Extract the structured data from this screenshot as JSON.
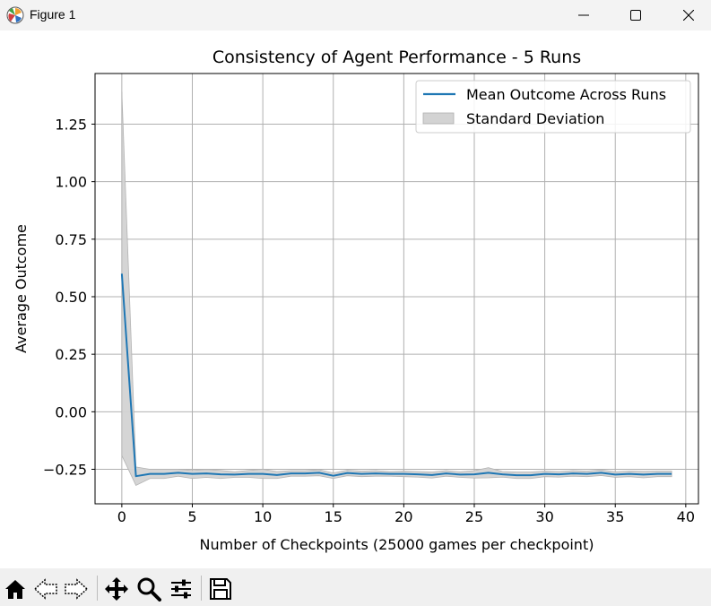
{
  "window": {
    "title": "Figure 1",
    "minimize_icon": "minimize-icon",
    "maximize_icon": "maximize-icon",
    "close_icon": "close-icon"
  },
  "toolbar": {
    "icons": [
      "home-icon",
      "back-icon",
      "forward-icon",
      "pan-icon",
      "zoom-icon",
      "configure-subplots-icon",
      "save-icon"
    ]
  },
  "chart_data": {
    "type": "line",
    "title": "Consistency of Agent Performance - 5 Runs",
    "xlabel": "Number of Checkpoints (25000 games per checkpoint)",
    "ylabel": "Average Outcome",
    "xlim": [
      -1.9,
      40.9
    ],
    "ylim": [
      -0.4,
      1.47
    ],
    "xticks": [
      0,
      5,
      10,
      15,
      20,
      25,
      30,
      35,
      40
    ],
    "xtick_labels": [
      "0",
      "5",
      "10",
      "15",
      "20",
      "25",
      "30",
      "35",
      "40"
    ],
    "yticks": [
      -0.25,
      0.0,
      0.25,
      0.5,
      0.75,
      1.0,
      1.25
    ],
    "ytick_labels": [
      "−0.25",
      "0.00",
      "0.25",
      "0.50",
      "0.75",
      "1.00",
      "1.25"
    ],
    "grid": true,
    "legend_position": "upper right",
    "x": [
      0,
      1,
      2,
      3,
      4,
      5,
      6,
      7,
      8,
      9,
      10,
      11,
      12,
      13,
      14,
      15,
      16,
      17,
      18,
      19,
      20,
      21,
      22,
      23,
      24,
      25,
      26,
      27,
      28,
      29,
      30,
      31,
      32,
      33,
      34,
      35,
      36,
      37,
      38,
      39
    ],
    "series": [
      {
        "name": "Mean Outcome Across Runs",
        "color": "#1f77b4",
        "values": [
          0.6,
          -0.28,
          -0.27,
          -0.27,
          -0.265,
          -0.27,
          -0.268,
          -0.272,
          -0.273,
          -0.27,
          -0.27,
          -0.275,
          -0.268,
          -0.268,
          -0.265,
          -0.278,
          -0.266,
          -0.27,
          -0.268,
          -0.27,
          -0.27,
          -0.272,
          -0.275,
          -0.268,
          -0.273,
          -0.272,
          -0.265,
          -0.272,
          -0.276,
          -0.276,
          -0.27,
          -0.272,
          -0.268,
          -0.27,
          -0.265,
          -0.273,
          -0.27,
          -0.273,
          -0.27,
          -0.27
        ]
      }
    ],
    "band": {
      "name": "Standard Deviation",
      "color": "#d3d3d3",
      "edge_color": "#b0b0b0",
      "lower": [
        -0.19,
        -0.32,
        -0.29,
        -0.29,
        -0.28,
        -0.29,
        -0.285,
        -0.29,
        -0.285,
        -0.285,
        -0.29,
        -0.29,
        -0.28,
        -0.28,
        -0.278,
        -0.29,
        -0.278,
        -0.282,
        -0.28,
        -0.28,
        -0.282,
        -0.284,
        -0.288,
        -0.28,
        -0.285,
        -0.288,
        -0.287,
        -0.284,
        -0.29,
        -0.29,
        -0.282,
        -0.284,
        -0.28,
        -0.282,
        -0.277,
        -0.285,
        -0.282,
        -0.287,
        -0.282,
        -0.282
      ],
      "upper": [
        1.39,
        -0.24,
        -0.25,
        -0.25,
        -0.25,
        -0.255,
        -0.251,
        -0.255,
        -0.261,
        -0.255,
        -0.25,
        -0.26,
        -0.256,
        -0.256,
        -0.252,
        -0.266,
        -0.254,
        -0.258,
        -0.256,
        -0.26,
        -0.258,
        -0.26,
        -0.262,
        -0.256,
        -0.261,
        -0.256,
        -0.243,
        -0.26,
        -0.262,
        -0.262,
        -0.258,
        -0.26,
        -0.256,
        -0.258,
        -0.253,
        -0.261,
        -0.258,
        -0.259,
        -0.258,
        -0.258
      ]
    }
  }
}
